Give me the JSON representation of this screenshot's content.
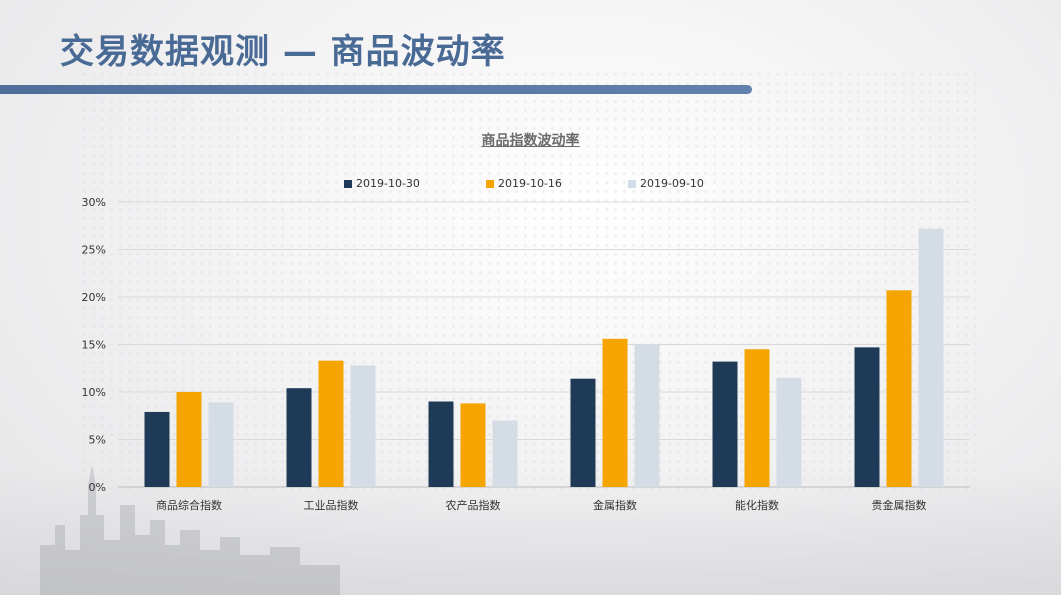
{
  "page": {
    "title": "交易数据观测 — 商品波动率"
  },
  "chart_data": {
    "type": "bar",
    "title": "商品指数波动率",
    "xlabel": "",
    "ylabel": "",
    "ylim": [
      0,
      30
    ],
    "yticks": [
      "0%",
      "5%",
      "10%",
      "15%",
      "20%",
      "25%",
      "30%"
    ],
    "grid": true,
    "legend_position": "top",
    "categories": [
      "商品综合指数",
      "工业品指数",
      "农产品指数",
      "金属指数",
      "能化指数",
      "贵金属指数"
    ],
    "series": [
      {
        "name": "2019-10-30",
        "color": "#1f3a56",
        "values": [
          7.9,
          10.4,
          9.0,
          11.4,
          13.2,
          14.7
        ]
      },
      {
        "name": "2019-10-16",
        "color": "#f5a400",
        "values": [
          10.0,
          13.3,
          8.8,
          15.6,
          14.5,
          20.7
        ]
      },
      {
        "name": "2019-09-10",
        "color": "#d4dce5",
        "values": [
          8.9,
          12.8,
          7.0,
          15.0,
          11.5,
          27.2
        ]
      }
    ]
  }
}
